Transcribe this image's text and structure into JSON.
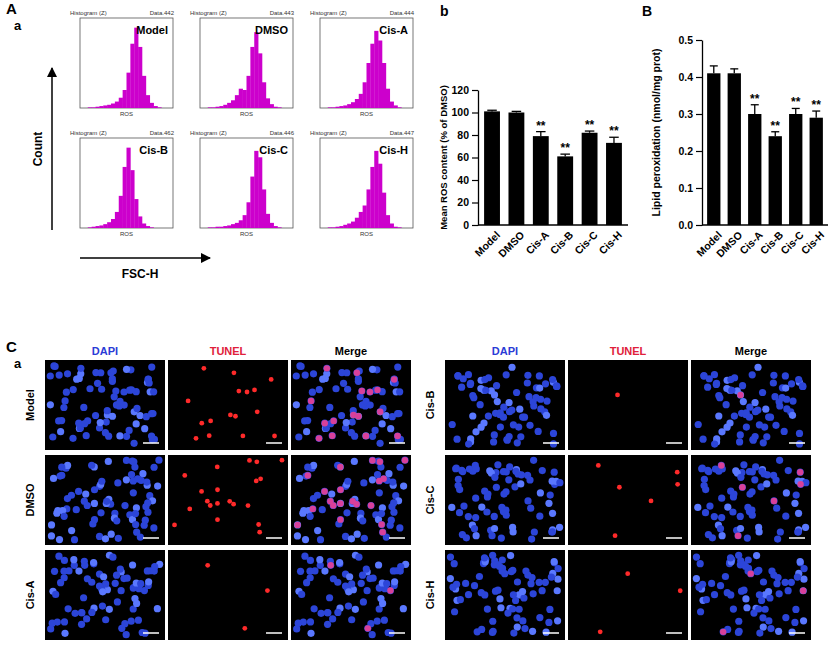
{
  "chart_data": [
    {
      "type": "histogram",
      "group": "A",
      "panel": "a",
      "panel_header": "Histogram (Z)",
      "x_label": "FSC-H",
      "y_label": "Count",
      "axis_label": "ROS",
      "color": "#cc00cc",
      "tick_labels": false,
      "bins": [
        0,
        40,
        80,
        120,
        160,
        200,
        240,
        280,
        320,
        360,
        400,
        440,
        480,
        520,
        560,
        600,
        640,
        680,
        720,
        760,
        800,
        840,
        880,
        920,
        960
      ],
      "xlim": [
        0,
        960
      ],
      "ylim": [
        0,
        140
      ],
      "plots": [
        {
          "title": "Model",
          "data_id": "Data.442",
          "counts": [
            0,
            0,
            1,
            1,
            2,
            3,
            4,
            5,
            7,
            10,
            16,
            28,
            55,
            100,
            125,
            95,
            50,
            20,
            8,
            3,
            1,
            0,
            0,
            0
          ]
        },
        {
          "title": "DMSO",
          "data_id": "Data.443",
          "counts": [
            0,
            0,
            1,
            1,
            2,
            3,
            5,
            8,
            12,
            20,
            30,
            28,
            50,
            95,
            118,
            85,
            40,
            15,
            6,
            2,
            1,
            0,
            0,
            0
          ]
        },
        {
          "title": "Cis-A",
          "data_id": "Data.444",
          "counts": [
            0,
            0,
            1,
            1,
            2,
            3,
            4,
            6,
            9,
            14,
            22,
            40,
            70,
            100,
            120,
            105,
            70,
            30,
            10,
            4,
            1,
            0,
            0,
            0
          ]
        },
        {
          "title": "Cis-B",
          "data_id": "Data.462",
          "counts": [
            0,
            0,
            1,
            2,
            3,
            4,
            6,
            9,
            14,
            25,
            50,
            95,
            125,
            90,
            45,
            18,
            7,
            3,
            1,
            0,
            0,
            0,
            0,
            0
          ]
        },
        {
          "title": "Cis-C",
          "data_id": "Data.446",
          "counts": [
            0,
            0,
            1,
            1,
            2,
            2,
            3,
            4,
            6,
            8,
            12,
            20,
            40,
            80,
            120,
            110,
            60,
            22,
            8,
            3,
            1,
            0,
            0,
            0
          ]
        },
        {
          "title": "Cis-H",
          "data_id": "Data.447",
          "counts": [
            0,
            0,
            1,
            1,
            2,
            3,
            5,
            7,
            10,
            16,
            25,
            35,
            60,
            95,
            120,
            100,
            55,
            20,
            7,
            2,
            1,
            0,
            0,
            0
          ]
        }
      ]
    },
    {
      "type": "bar",
      "panel": "b",
      "y_label": "Mean ROS content (% of DMSO)",
      "color": "#000000",
      "categories": [
        "Model",
        "DMSO",
        "Cis-A",
        "Cis-B",
        "Cis-C",
        "Cis-H"
      ],
      "values": [
        101,
        100,
        79,
        61,
        82,
        73
      ],
      "errors": [
        1,
        1,
        4,
        2,
        1.5,
        5
      ],
      "annotations": [
        null,
        null,
        "**",
        "**",
        "**",
        "**"
      ],
      "ylim": [
        0,
        120
      ],
      "yticks": [
        0,
        20,
        40,
        60,
        80,
        100,
        120
      ],
      "grid": false
    },
    {
      "type": "bar",
      "panel": "B",
      "y_label": "Lipid peroxidation (nmol/mg prot)",
      "color": "#000000",
      "categories": [
        "Model",
        "DMSO",
        "Cis-A",
        "Cis-B",
        "Cis-C",
        "Cis-H"
      ],
      "values": [
        0.41,
        0.41,
        0.3,
        0.24,
        0.3,
        0.29
      ],
      "errors": [
        0.02,
        0.012,
        0.025,
        0.012,
        0.015,
        0.018
      ],
      "annotations": [
        null,
        null,
        "**",
        "**",
        "**",
        "**"
      ],
      "ylim": [
        0,
        0.5
      ],
      "yticks": [
        {
          "value": 0,
          "label": "0.0"
        },
        0.1,
        0.2,
        0.3,
        0.4,
        0.5
      ],
      "grid": false
    },
    {
      "type": "image_grid",
      "group": "C",
      "panel": "a",
      "columns": [
        {
          "name": "DAPI",
          "color": "#2b3bd6"
        },
        {
          "name": "TUNEL",
          "color": "#e0203a"
        },
        {
          "name": "Merge",
          "color": "#000000"
        }
      ],
      "rows": [
        {
          "name": "Model",
          "tunel_positive": 16
        },
        {
          "name": "DMSO",
          "tunel_positive": 20
        },
        {
          "name": "Cis-A",
          "tunel_positive": 3
        },
        {
          "name": "Cis-B",
          "tunel_positive": 1
        },
        {
          "name": "Cis-C",
          "tunel_positive": 6
        },
        {
          "name": "Cis-H",
          "tunel_positive": 3
        }
      ]
    }
  ]
}
